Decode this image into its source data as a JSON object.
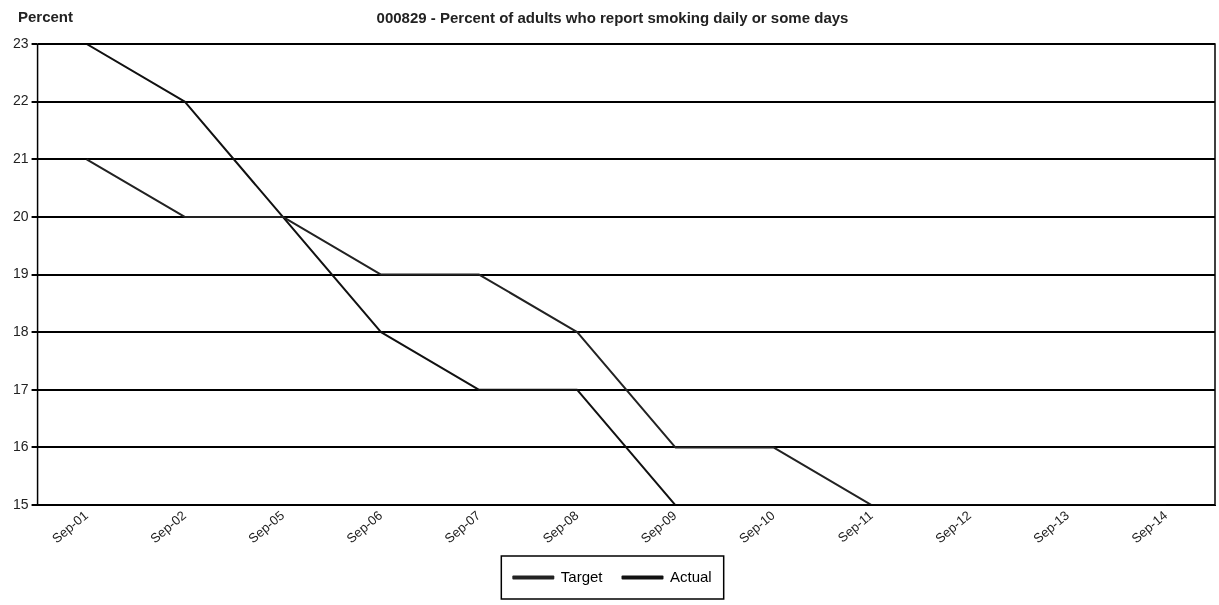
{
  "chart_data": {
    "type": "line",
    "title": "000829 - Percent of adults who report smoking daily or some days",
    "ylabel": "Percent",
    "categories": [
      "Sep-01",
      "Sep-02",
      "Sep-05",
      "Sep-06",
      "Sep-07",
      "Sep-08",
      "Sep-09",
      "Sep-10",
      "Sep-11",
      "Sep-12",
      "Sep-13",
      "Sep-14"
    ],
    "series": [
      {
        "name": "Target",
        "color": "#222222",
        "values": [
          21,
          20,
          20,
          19,
          19,
          18,
          16,
          16,
          15,
          15,
          15,
          15
        ]
      },
      {
        "name": "Actual",
        "color": "#111111",
        "values": [
          23,
          22,
          20,
          18,
          17,
          17,
          15,
          15,
          15,
          null,
          null,
          null
        ]
      }
    ],
    "ylim": [
      15,
      23
    ],
    "yticks": [
      15,
      16,
      17,
      18,
      19,
      20,
      21,
      22,
      23
    ],
    "grid": "y",
    "legend": "bottom",
    "marker": "none",
    "line_style": "solid"
  }
}
